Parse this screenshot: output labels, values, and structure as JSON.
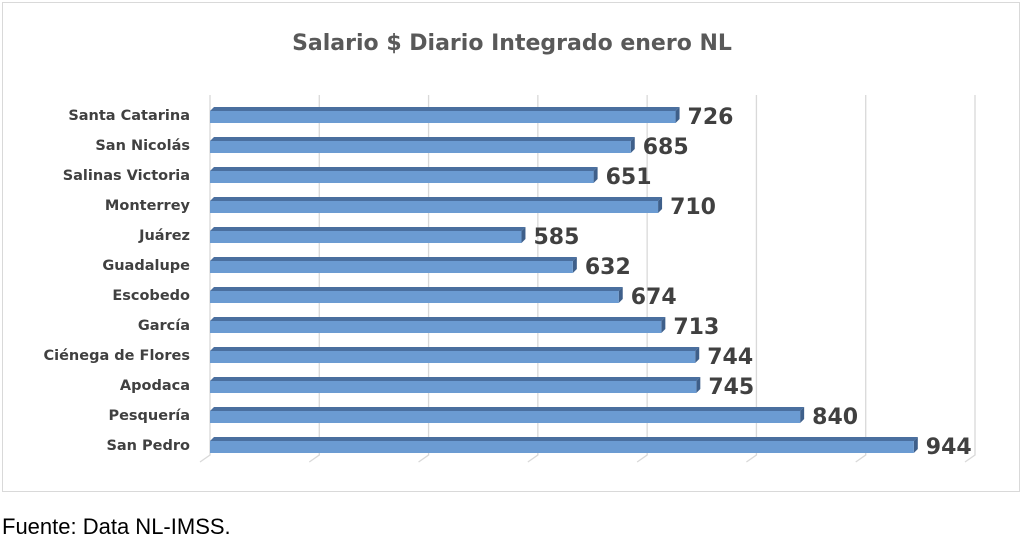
{
  "chart_data": {
    "type": "bar",
    "orientation": "horizontal",
    "title": "Salario $ Diario Integrado enero NL",
    "categories": [
      "Santa Catarina",
      "San Nicolás",
      "Salinas Victoria",
      "Monterrey",
      "Juárez",
      "Guadalupe",
      "Escobedo",
      "García",
      "Ciénega de Flores",
      "Apodaca",
      "Pesquería",
      "San Pedro"
    ],
    "values": [
      726,
      685,
      651,
      710,
      585,
      632,
      674,
      713,
      744,
      745,
      840,
      944
    ],
    "value_labels": [
      "726",
      "685",
      "651",
      "710",
      "585",
      "632",
      "674",
      "713",
      "744",
      "745",
      "840",
      "944"
    ],
    "xlim": [
      300,
      1000
    ],
    "grid_step": 100,
    "grid": true,
    "xlabel": "",
    "ylabel": "",
    "bar_color": "#6B9BD2",
    "bar_top_color": "#4A6F9F"
  },
  "source": "Fuente: Data NL-IMSS."
}
